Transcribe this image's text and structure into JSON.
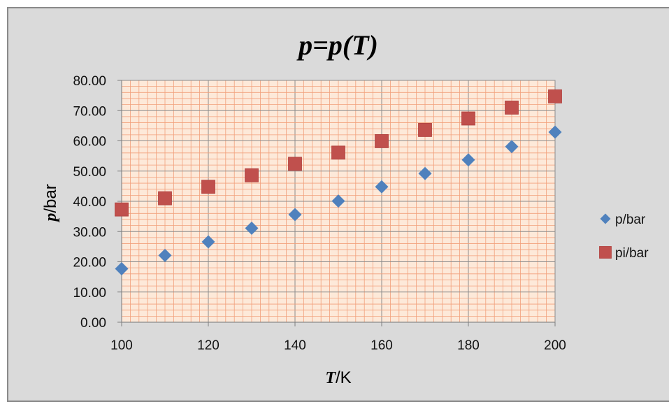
{
  "chart_data": {
    "type": "scatter",
    "title": "p=p(T)",
    "xlabel": "T/K",
    "ylabel": "p/bar",
    "xlim": [
      100,
      200
    ],
    "ylim": [
      0,
      80
    ],
    "x_ticks": [
      "100",
      "120",
      "140",
      "160",
      "180",
      "200"
    ],
    "y_ticks": [
      "0.00",
      "10.00",
      "20.00",
      "30.00",
      "40.00",
      "50.00",
      "60.00",
      "70.00",
      "80.00"
    ],
    "grid": true,
    "legend_position": "right",
    "series": [
      {
        "name": "p/bar",
        "marker": "diamond",
        "color": "#4f81bd",
        "x": [
          100,
          110,
          120,
          130,
          140,
          150,
          160,
          170,
          180,
          190,
          200
        ],
        "y": [
          17.7,
          22.1,
          26.6,
          31.1,
          35.6,
          40.1,
          44.8,
          49.2,
          53.7,
          58.1,
          62.9
        ]
      },
      {
        "name": "pi/bar",
        "marker": "square",
        "color": "#c0504d",
        "x": [
          100,
          110,
          120,
          130,
          140,
          150,
          160,
          170,
          180,
          190,
          200
        ],
        "y": [
          37.3,
          41.0,
          44.8,
          48.6,
          52.4,
          56.1,
          59.9,
          63.6,
          67.4,
          71.0,
          74.7
        ]
      }
    ]
  },
  "colors": {
    "background": "#dadada",
    "plot_area": "#fde9d9",
    "grid_major": "#8c8c8c",
    "grid_minor": "#f2a07b"
  }
}
